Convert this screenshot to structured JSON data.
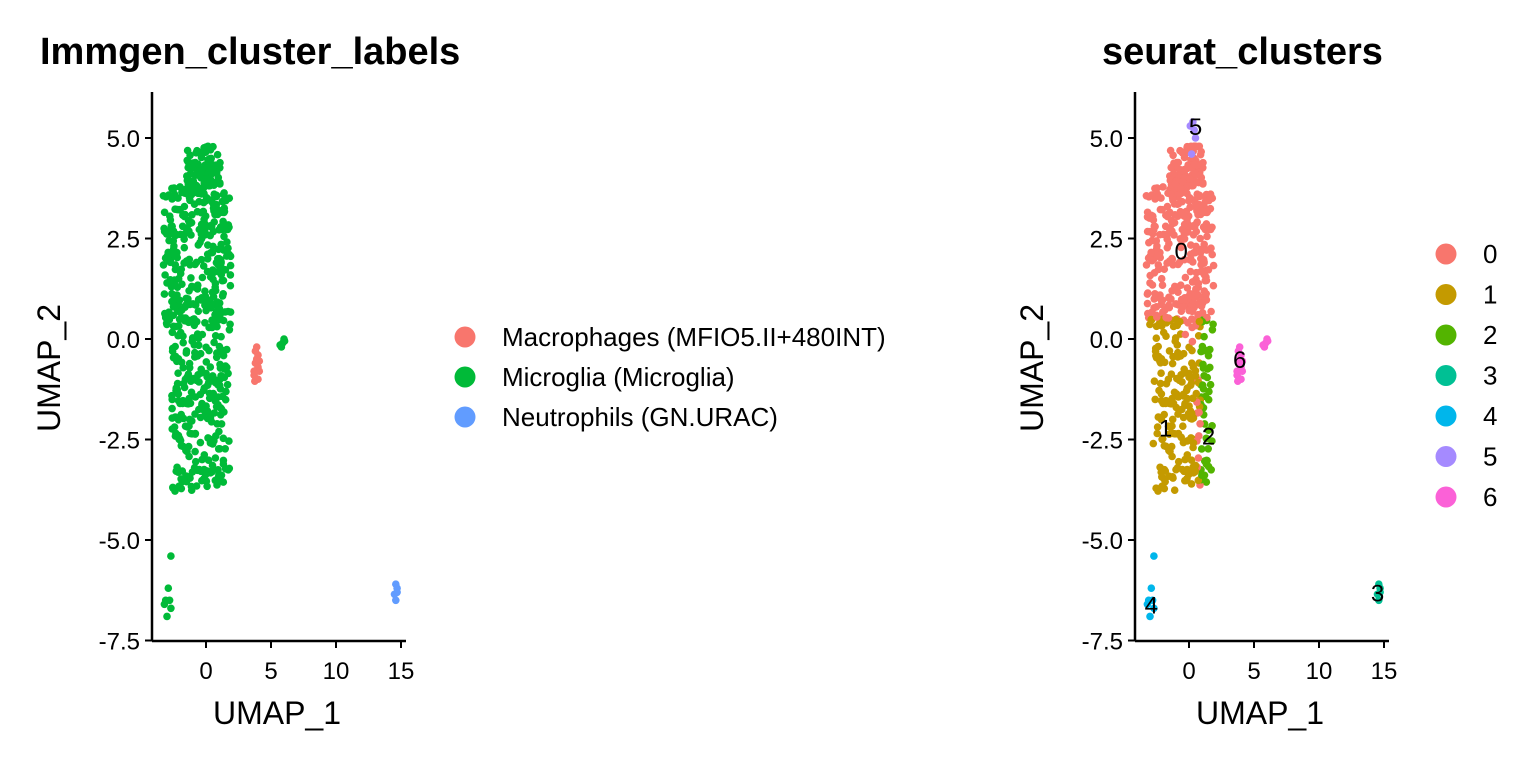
{
  "chart_data": [
    {
      "type": "scatter",
      "title": "Immgen_cluster_labels",
      "xlabel": "UMAP_1",
      "ylabel": "UMAP_2",
      "xlim": [
        -4,
        15.5
      ],
      "ylim": [
        -7.5,
        6.0
      ],
      "xticks": [
        "0",
        "5",
        "10",
        "15"
      ],
      "yticks": [
        "5.0",
        "2.5",
        "0.0",
        "-2.5",
        "-5.0",
        "-7.5"
      ],
      "grid": false,
      "legend_position": "right",
      "legend": [
        {
          "label": "Macrophages (MFIO5.II+480INT)",
          "color": "#F8766D"
        },
        {
          "label": "Microglia (Microglia)",
          "color": "#00BA38"
        },
        {
          "label": "Neutrophils (GN.URAC)",
          "color": "#619CFF"
        }
      ],
      "groups": [
        {
          "name": "Macrophages (MFIO5.II+480INT)",
          "color": "#F8766D",
          "points": [
            [
              3.8,
              -0.3
            ],
            [
              3.9,
              -0.5
            ],
            [
              4.0,
              -0.7
            ],
            [
              3.7,
              -0.9
            ],
            [
              3.9,
              -1.0
            ],
            [
              4.1,
              -0.8
            ],
            [
              3.8,
              -0.6
            ],
            [
              4.0,
              -0.4
            ],
            [
              3.7,
              -0.8
            ],
            [
              4.0,
              -1.0
            ],
            [
              3.9,
              -0.2
            ],
            [
              4.1,
              -0.55
            ],
            [
              3.75,
              -1.05
            ]
          ]
        },
        {
          "name": "Microglia (Microglia)",
          "color": "#00BA38",
          "points": [
            [
              5.8,
              -0.2
            ],
            [
              6.0,
              0.0
            ],
            [
              5.9,
              -0.1
            ],
            [
              5.7,
              -0.15
            ],
            [
              6.05,
              -0.05
            ],
            [
              -2.9,
              -6.2
            ],
            [
              -3.1,
              -6.5
            ],
            [
              -2.7,
              -6.7
            ],
            [
              -3.0,
              -6.9
            ],
            [
              -2.8,
              -6.5
            ],
            [
              -3.2,
              -6.6
            ],
            [
              -2.7,
              -5.4
            ]
          ]
        },
        {
          "name": "Neutrophils (GN.URAC)",
          "color": "#619CFF",
          "points": [
            [
              14.6,
              -6.1
            ],
            [
              14.7,
              -6.2
            ],
            [
              14.5,
              -6.35
            ],
            [
              14.6,
              -6.5
            ],
            [
              14.7,
              -6.3
            ]
          ]
        }
      ]
    },
    {
      "type": "scatter",
      "title": "seurat_clusters",
      "xlabel": "UMAP_1",
      "ylabel": "UMAP_2",
      "xlim": [
        -4,
        15.5
      ],
      "ylim": [
        -7.5,
        6.0
      ],
      "xticks": [
        "0",
        "5",
        "10",
        "15"
      ],
      "yticks": [
        "5.0",
        "2.5",
        "0.0",
        "-2.5",
        "-5.0",
        "-7.5"
      ],
      "grid": false,
      "legend_position": "right",
      "legend": [
        {
          "label": "0",
          "color": "#F8766D"
        },
        {
          "label": "1",
          "color": "#C49A00"
        },
        {
          "label": "2",
          "color": "#53B400"
        },
        {
          "label": "3",
          "color": "#00C094"
        },
        {
          "label": "4",
          "color": "#00B6EB"
        },
        {
          "label": "5",
          "color": "#A58AFF"
        },
        {
          "label": "6",
          "color": "#FB61D7"
        }
      ],
      "cluster_labels": [
        {
          "label": "0",
          "x": -0.6,
          "y": 2.2
        },
        {
          "label": "1",
          "x": -1.8,
          "y": -2.2
        },
        {
          "label": "2",
          "x": 1.5,
          "y": -2.4
        },
        {
          "label": "3",
          "x": 14.5,
          "y": -6.3
        },
        {
          "label": "4",
          "x": -2.9,
          "y": -6.6
        },
        {
          "label": "5",
          "x": 0.5,
          "y": 5.3
        },
        {
          "label": "6",
          "x": 3.9,
          "y": -0.5
        }
      ],
      "groups": [
        {
          "name": "3",
          "color": "#00C094",
          "points": [
            [
              14.6,
              -6.1
            ],
            [
              14.7,
              -6.2
            ],
            [
              14.5,
              -6.35
            ],
            [
              14.6,
              -6.5
            ],
            [
              14.7,
              -6.3
            ]
          ]
        },
        {
          "name": "4",
          "color": "#00B6EB",
          "points": [
            [
              -2.9,
              -6.2
            ],
            [
              -3.1,
              -6.5
            ],
            [
              -2.7,
              -6.7
            ],
            [
              -3.0,
              -6.9
            ],
            [
              -2.8,
              -6.5
            ],
            [
              -3.2,
              -6.6
            ],
            [
              -2.7,
              -5.4
            ]
          ]
        },
        {
          "name": "5",
          "color": "#A58AFF",
          "points": [
            [
              0.3,
              5.4
            ],
            [
              0.4,
              5.2
            ],
            [
              0.2,
              4.6
            ],
            [
              0.5,
              5.0
            ],
            [
              0.1,
              5.3
            ]
          ]
        },
        {
          "name": "6",
          "color": "#FB61D7",
          "points": [
            [
              3.8,
              -0.3
            ],
            [
              3.9,
              -0.5
            ],
            [
              4.0,
              -0.7
            ],
            [
              3.7,
              -0.9
            ],
            [
              3.9,
              -1.0
            ],
            [
              4.1,
              -0.8
            ],
            [
              3.8,
              -0.6
            ],
            [
              4.0,
              -0.4
            ],
            [
              3.7,
              -0.8
            ],
            [
              4.0,
              -1.0
            ],
            [
              3.9,
              -0.2
            ],
            [
              4.1,
              -0.55
            ],
            [
              3.75,
              -1.05
            ],
            [
              5.8,
              -0.2
            ],
            [
              6.0,
              0.0
            ],
            [
              5.9,
              -0.1
            ],
            [
              5.7,
              -0.15
            ],
            [
              6.05,
              -0.05
            ]
          ]
        }
      ]
    }
  ]
}
